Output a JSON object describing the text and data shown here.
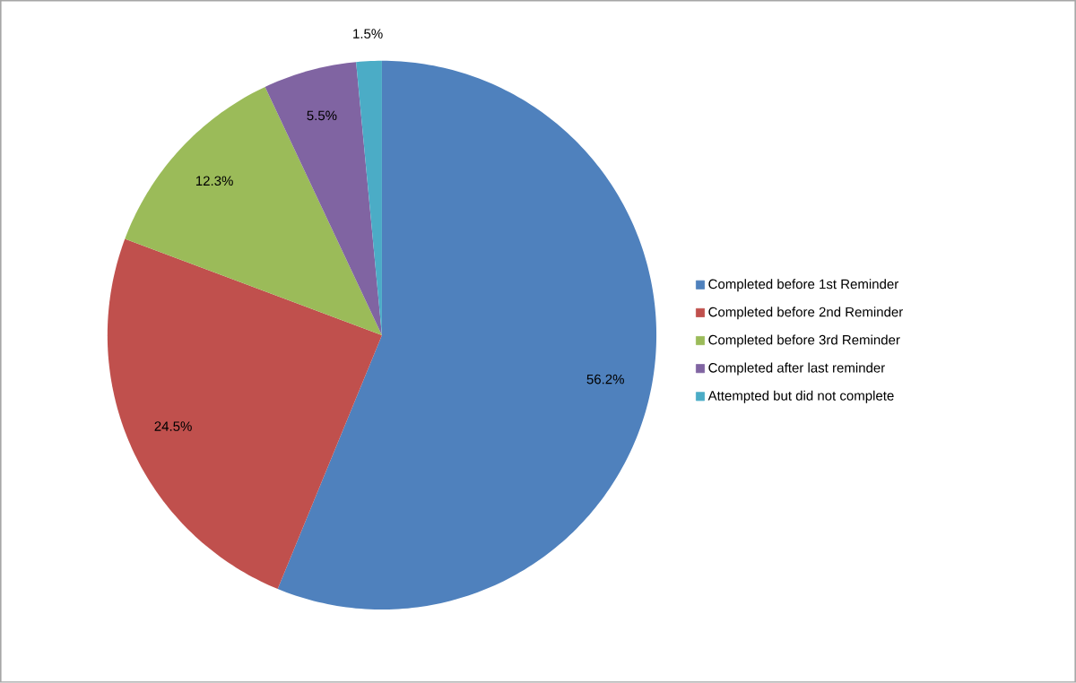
{
  "chart_data": {
    "type": "pie",
    "categories": [
      "Completed before 1st Reminder",
      "Completed before 2nd Reminder",
      "Completed before 3rd Reminder",
      "Completed after last reminder",
      "Attempted but did not complete"
    ],
    "values": [
      56.2,
      24.5,
      12.3,
      5.5,
      1.5
    ],
    "colors": [
      "#4f81bd",
      "#c0504d",
      "#9bbb59",
      "#8064a2",
      "#4bacc6"
    ],
    "value_labels": [
      "56.2%",
      "24.5%",
      "12.3%",
      "5.5%",
      "1.5%"
    ],
    "legend": "right"
  }
}
